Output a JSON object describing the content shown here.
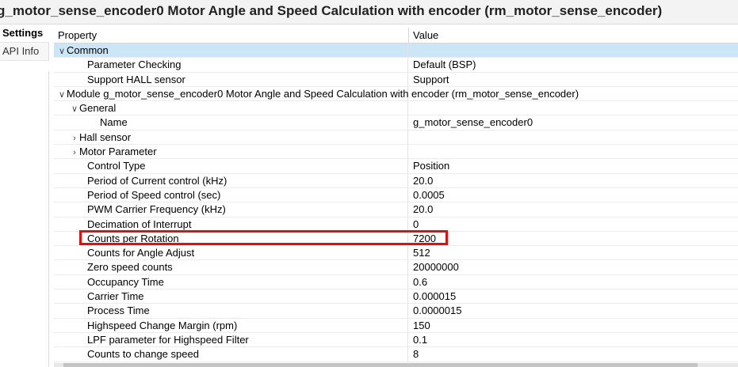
{
  "title": "g_motor_sense_encoder0 Motor Angle and Speed Calculation with encoder (rm_motor_sense_encoder)",
  "side_tabs": [
    {
      "label": "Settings",
      "active": true
    },
    {
      "label": "API Info",
      "active": false
    }
  ],
  "header": {
    "property": "Property",
    "value": "Value"
  },
  "rows": [
    {
      "label": "Common",
      "value": "",
      "indent": 0,
      "expander": "down",
      "selected": true
    },
    {
      "label": "Parameter Checking",
      "value": "Default (BSP)",
      "indent": 2,
      "expander": "",
      "selected": false
    },
    {
      "label": "Support HALL sensor",
      "value": "Support",
      "indent": 2,
      "expander": "",
      "selected": false
    },
    {
      "label": "Module g_motor_sense_encoder0 Motor Angle and Speed Calculation with encoder (rm_motor_sense_encoder)",
      "value": "",
      "indent": 0,
      "expander": "down",
      "selected": false
    },
    {
      "label": "General",
      "value": "",
      "indent": 1,
      "expander": "down",
      "selected": false
    },
    {
      "label": "Name",
      "value": "g_motor_sense_encoder0",
      "indent": 3,
      "expander": "",
      "selected": false
    },
    {
      "label": "Hall sensor",
      "value": "",
      "indent": 1,
      "expander": "right",
      "selected": false
    },
    {
      "label": "Motor Parameter",
      "value": "",
      "indent": 1,
      "expander": "right",
      "selected": false
    },
    {
      "label": "Control Type",
      "value": "Position",
      "indent": 2,
      "expander": "",
      "selected": false
    },
    {
      "label": "Period of Current control (kHz)",
      "value": "20.0",
      "indent": 2,
      "expander": "",
      "selected": false
    },
    {
      "label": "Period of Speed control (sec)",
      "value": "0.0005",
      "indent": 2,
      "expander": "",
      "selected": false
    },
    {
      "label": "PWM Carrier Frequency (kHz)",
      "value": "20.0",
      "indent": 2,
      "expander": "",
      "selected": false
    },
    {
      "label": "Decimation of Interrupt",
      "value": "0",
      "indent": 2,
      "expander": "",
      "selected": false
    },
    {
      "label": "Counts per Rotation",
      "value": "7200",
      "indent": 2,
      "expander": "",
      "selected": false
    },
    {
      "label": "Counts for Angle Adjust",
      "value": "512",
      "indent": 2,
      "expander": "",
      "selected": false
    },
    {
      "label": "Zero speed counts",
      "value": "20000000",
      "indent": 2,
      "expander": "",
      "selected": false
    },
    {
      "label": "Occupancy Time",
      "value": "0.6",
      "indent": 2,
      "expander": "",
      "selected": false
    },
    {
      "label": "Carrier Time",
      "value": "0.000015",
      "indent": 2,
      "expander": "",
      "selected": false
    },
    {
      "label": "Process Time",
      "value": "0.0000015",
      "indent": 2,
      "expander": "",
      "selected": false
    },
    {
      "label": "Highspeed Change Margin (rpm)",
      "value": "150",
      "indent": 2,
      "expander": "",
      "selected": false
    },
    {
      "label": "LPF parameter for Highspeed Filter",
      "value": "0.1",
      "indent": 2,
      "expander": "",
      "selected": false
    },
    {
      "label": "Counts to change speed",
      "value": "8",
      "indent": 2,
      "expander": "",
      "selected": false
    }
  ],
  "colors": {
    "selected_row": "#cce6f7",
    "highlight_box": "#e01010"
  }
}
